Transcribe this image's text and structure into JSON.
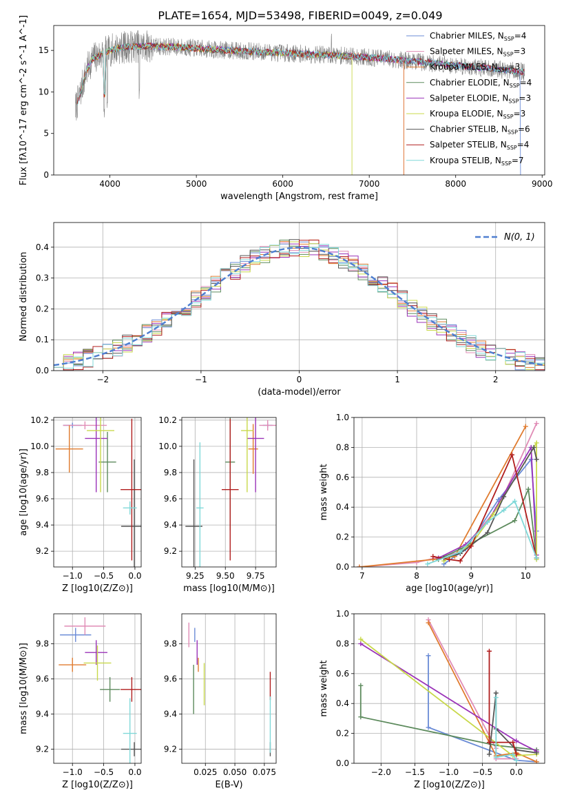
{
  "figure_title": "PLATE=1654, MJD=53498, FIBERID=0049, z=0.049",
  "models": [
    {
      "label": "Chabrier MILES, N",
      "n": "4",
      "color": "#6a8bd6"
    },
    {
      "label": "Salpeter MILES, N",
      "n": "3",
      "color": "#e08bb5"
    },
    {
      "label": "Kroupa MILES, N",
      "n": "3",
      "color": "#e07b2e"
    },
    {
      "label": "Chabrier ELODIE, N",
      "n": "4",
      "color": "#5c8a5c"
    },
    {
      "label": "Salpeter ELODIE, N",
      "n": "3",
      "color": "#9a32b8"
    },
    {
      "label": "Kroupa ELODIE, N",
      "n": "3",
      "color": "#c8d84a"
    },
    {
      "label": "Chabrier STELIB, N",
      "n": "6",
      "color": "#555555"
    },
    {
      "label": "Salpeter STELIB, N",
      "n": "4",
      "color": "#b01c1c"
    },
    {
      "label": "Kroupa STELIB, N",
      "n": "7",
      "color": "#7fd8d8"
    }
  ],
  "legend_sub": "SSP",
  "normal_label": "N(0, 1)",
  "chart_data": [
    {
      "id": "spectrum",
      "type": "line",
      "title": "PLATE=1654, MJD=53498, FIBERID=0049, z=0.049",
      "xlabel": "wavelength [Angstrom, rest frame]",
      "ylabel": "Flux [fλ10^-17 erg cm^-2 s^-1 A^-1]",
      "xlim": [
        3350,
        9030
      ],
      "ylim": [
        0,
        18
      ],
      "xticks": [
        "4000",
        "5000",
        "6000",
        "7000",
        "8000",
        "9000"
      ],
      "yticks": [
        "0",
        "5",
        "10",
        "15"
      ],
      "data_wavelength": [
        3600,
        3650,
        3700,
        3750,
        3800,
        3900,
        4000,
        4100,
        4300,
        4500,
        4800,
        5200,
        5600,
        6000,
        6400,
        6800,
        7200,
        7600,
        8000,
        8400,
        8800
      ],
      "data_flux": [
        8.0,
        9.5,
        11.5,
        13.0,
        14.0,
        14.5,
        15.0,
        15.3,
        15.5,
        15.5,
        15.4,
        15.1,
        14.9,
        14.7,
        14.5,
        14.3,
        14.0,
        13.6,
        13.2,
        12.8,
        12.4
      ],
      "model_cutoff": {
        "Chabrier MILES": 8750,
        "Salpeter MILES": 7400,
        "Kroupa MILES": 7400,
        "Kroupa ELODIE": 6800
      }
    },
    {
      "id": "residuals",
      "type": "histogram",
      "xlabel": "(data-model)/error",
      "ylabel": "Normed distribution",
      "xlim": [
        -2.5,
        2.5
      ],
      "ylim": [
        0,
        0.48
      ],
      "xticks": [
        "-2",
        "-1",
        "0",
        "1",
        "2"
      ],
      "yticks": [
        "0.0",
        "0.1",
        "0.2",
        "0.3",
        "0.4"
      ],
      "bin_width": 0.1,
      "reference": "normal(0,1)"
    },
    {
      "id": "age_vs_Z",
      "type": "errorbar",
      "xlabel": "Z [log10(Z/Z⊙)]",
      "ylabel": "age [log10(age/yr)]",
      "xlim": [
        -1.3,
        0.1
      ],
      "ylim": [
        9.08,
        10.22
      ],
      "xticks": [
        "-1.0",
        "-0.5",
        "0.0"
      ],
      "yticks": [
        "9.2",
        "9.4",
        "9.6",
        "9.8",
        "10.0",
        "10.2"
      ],
      "points": [
        {
          "x": -1.0,
          "xerr": 0.15,
          "y": 10.16,
          "yerr": 0.02
        },
        {
          "x": -0.8,
          "xerr": 0.35,
          "y": 10.16,
          "yerr": 0.03
        },
        {
          "x": -1.05,
          "xerr": 0.22,
          "y": 9.98,
          "yerr": 0.18
        },
        {
          "x": -0.44,
          "xerr": 0.14,
          "y": 9.88,
          "yerr": 0.23
        },
        {
          "x": -0.62,
          "xerr": 0.18,
          "y": 10.06,
          "yerr": 0.41
        },
        {
          "x": -0.55,
          "xerr": 0.22,
          "y": 10.12,
          "yerr": 0.47
        },
        {
          "x": -0.01,
          "xerr": 0.21,
          "y": 9.39,
          "yerr": 0.51
        },
        {
          "x": -0.05,
          "xerr": 0.18,
          "y": 9.67,
          "yerr": 0.54
        },
        {
          "x": -0.08,
          "xerr": 0.11,
          "y": 9.53,
          "yerr": 0.05
        }
      ]
    },
    {
      "id": "age_vs_mass",
      "type": "errorbar",
      "xlabel": "mass [log10(M/M⊙)]",
      "ylabel": "",
      "xlim": [
        9.14,
        9.92
      ],
      "ylim": [
        9.08,
        10.22
      ],
      "xticks": [
        "9.25",
        "9.50",
        "9.75"
      ],
      "yticks": [
        "9.2",
        "9.4",
        "9.6",
        "9.8",
        "10.0",
        "10.2"
      ],
      "points": [
        {
          "x": 9.85,
          "xerr": 0.04,
          "y": 10.16,
          "yerr": 0.02
        },
        {
          "x": 9.85,
          "xerr": 0.07,
          "y": 10.16,
          "yerr": 0.04
        },
        {
          "x": 9.73,
          "xerr": 0.04,
          "y": 9.98,
          "yerr": 0.19
        },
        {
          "x": 9.54,
          "xerr": 0.04,
          "y": 9.88,
          "yerr": 0.52
        },
        {
          "x": 9.75,
          "xerr": 0.07,
          "y": 10.06,
          "yerr": 0.41
        },
        {
          "x": 9.68,
          "xerr": 0.05,
          "y": 10.12,
          "yerr": 0.47
        },
        {
          "x": 9.24,
          "xerr": 0.07,
          "y": 9.39,
          "yerr": 0.51
        },
        {
          "x": 9.54,
          "xerr": 0.07,
          "y": 9.67,
          "yerr": 0.54
        },
        {
          "x": 9.29,
          "xerr": 0.03,
          "y": 9.53,
          "yerr": 0.5
        }
      ]
    },
    {
      "id": "massweight_vs_age",
      "type": "line",
      "xlabel": "age [log10(age/yr)]",
      "ylabel": "mass weight",
      "xlim": [
        6.85,
        10.35
      ],
      "ylim": [
        0,
        1.0
      ],
      "xticks": [
        "7",
        "8",
        "9",
        "10"
      ],
      "yticks": [
        "0.0",
        "0.2",
        "0.4",
        "0.6",
        "0.8",
        "1.0"
      ],
      "series": [
        {
          "x": [
            8.5,
            8.9,
            9.5,
            10.1,
            10.2
          ],
          "y": [
            0.02,
            0.12,
            0.45,
            0.72,
            0.24
          ]
        },
        {
          "x": [
            6.95,
            8.0,
            8.8,
            9.5,
            10.2
          ],
          "y": [
            0.0,
            0.03,
            0.1,
            0.4,
            0.96
          ]
        },
        {
          "x": [
            6.95,
            8.3,
            8.7,
            10.0
          ],
          "y": [
            0.0,
            0.05,
            0.07,
            0.94
          ]
        },
        {
          "x": [
            8.4,
            8.8,
            9.8,
            10.05,
            10.2
          ],
          "y": [
            0.05,
            0.12,
            0.31,
            0.52,
            0.06
          ]
        },
        {
          "x": [
            8.4,
            8.9,
            9.3,
            10.1,
            10.2
          ],
          "y": [
            0.06,
            0.15,
            0.3,
            0.8,
            0.08
          ]
        },
        {
          "x": [
            8.5,
            9.0,
            9.4,
            10.2,
            10.2
          ],
          "y": [
            0.04,
            0.15,
            0.35,
            0.83,
            0.05
          ]
        },
        {
          "x": [
            8.5,
            8.8,
            9.3,
            9.6,
            10.15,
            10.2
          ],
          "y": [
            0.06,
            0.09,
            0.23,
            0.47,
            0.8,
            0.72
          ]
        },
        {
          "x": [
            8.3,
            8.6,
            8.8,
            9.0,
            9.75,
            10.2
          ],
          "y": [
            0.07,
            0.05,
            0.04,
            0.14,
            0.75,
            0.06
          ]
        },
        {
          "x": [
            8.2,
            8.8,
            9.3,
            9.6,
            9.8,
            10.2
          ],
          "y": [
            0.02,
            0.1,
            0.3,
            0.38,
            0.44,
            0.06
          ]
        }
      ]
    },
    {
      "id": "mass_vs_Z",
      "type": "errorbar",
      "xlabel": "Z [log10(Z/Z⊙)]",
      "ylabel": "mass [log10(M/M⊙)]",
      "xlim": [
        -1.3,
        0.1
      ],
      "ylim": [
        9.12,
        9.97
      ],
      "xticks": [
        "-1.0",
        "-0.5",
        "0.0"
      ],
      "yticks": [
        "9.2",
        "9.4",
        "9.6",
        "9.8"
      ],
      "points": [
        {
          "x": -0.95,
          "xerr": 0.25,
          "y": 9.85,
          "yerr": 0.04
        },
        {
          "x": -0.8,
          "xerr": 0.33,
          "y": 9.9,
          "yerr": 0.05
        },
        {
          "x": -1.0,
          "xerr": 0.22,
          "y": 9.68,
          "yerr": 0.04
        },
        {
          "x": -0.4,
          "xerr": 0.16,
          "y": 9.54,
          "yerr": 0.07
        },
        {
          "x": -0.62,
          "xerr": 0.18,
          "y": 9.75,
          "yerr": 0.07
        },
        {
          "x": -0.6,
          "xerr": 0.22,
          "y": 9.69,
          "yerr": 0.1
        },
        {
          "x": -0.01,
          "xerr": 0.21,
          "y": 9.2,
          "yerr": 0.04
        },
        {
          "x": -0.05,
          "xerr": 0.18,
          "y": 9.54,
          "yerr": 0.07
        },
        {
          "x": -0.08,
          "xerr": 0.11,
          "y": 9.29,
          "yerr": 0.2
        }
      ]
    },
    {
      "id": "mass_vs_ebv",
      "type": "errorbar",
      "xlabel": "E(B-V)",
      "ylabel": "",
      "xlim": [
        0.005,
        0.085
      ],
      "ylim": [
        9.12,
        9.97
      ],
      "xticks": [
        "0.025",
        "0.050",
        "0.075"
      ],
      "yticks": [
        "9.2",
        "9.4",
        "9.6",
        "9.8"
      ],
      "points": [
        {
          "x": 0.016,
          "xerr": 0.0,
          "y": 9.85,
          "yerr": 0.04
        },
        {
          "x": 0.011,
          "xerr": 0.0,
          "y": 9.85,
          "yerr": 0.07
        },
        {
          "x": 0.019,
          "xerr": 0.0,
          "y": 9.68,
          "yerr": 0.04
        },
        {
          "x": 0.015,
          "xerr": 0.0,
          "y": 9.54,
          "yerr": 0.14
        },
        {
          "x": 0.018,
          "xerr": 0.0,
          "y": 9.75,
          "yerr": 0.07
        },
        {
          "x": 0.024,
          "xerr": 0.0,
          "y": 9.57,
          "yerr": 0.12
        },
        {
          "x": 0.08,
          "xerr": 0.0,
          "y": 9.2,
          "yerr": 0.04
        },
        {
          "x": 0.08,
          "xerr": 0.0,
          "y": 9.56,
          "yerr": 0.08
        },
        {
          "x": 0.08,
          "xerr": 0.0,
          "y": 9.34,
          "yerr": 0.16
        }
      ]
    },
    {
      "id": "massweight_vs_Z",
      "type": "line",
      "xlabel": "Z [log10(Z/Z⊙)]",
      "ylabel": "mass weight",
      "xlim": [
        -2.4,
        0.42
      ],
      "ylim": [
        0,
        1.0
      ],
      "xticks": [
        "-2.0",
        "-1.5",
        "-1.0",
        "-0.5",
        "0.0"
      ],
      "yticks": [
        "0.0",
        "0.2",
        "0.4",
        "0.6",
        "0.8",
        "1.0"
      ],
      "series": [
        {
          "x": [
            -1.3,
            -1.3,
            0.0,
            0.3
          ],
          "y": [
            0.72,
            0.24,
            0.02,
            0.01
          ]
        },
        {
          "x": [
            -1.3,
            -0.3,
            -0.3,
            0.0
          ],
          "y": [
            0.96,
            0.1,
            0.03,
            0.03
          ]
        },
        {
          "x": [
            -1.3,
            -0.3,
            0.0,
            0.3
          ],
          "y": [
            0.94,
            0.05,
            0.07,
            0.01
          ]
        },
        {
          "x": [
            -2.3,
            -2.3,
            -0.3,
            0.3
          ],
          "y": [
            0.52,
            0.31,
            0.12,
            0.09
          ]
        },
        {
          "x": [
            -2.3,
            0.0,
            0.3
          ],
          "y": [
            0.8,
            0.15,
            0.08
          ]
        },
        {
          "x": [
            -2.3,
            -0.05,
            0.3
          ],
          "y": [
            0.83,
            0.05,
            0.06
          ]
        },
        {
          "x": [
            -0.4,
            -0.3,
            -0.3,
            0.0,
            0.3
          ],
          "y": [
            0.06,
            0.47,
            0.23,
            0.09,
            0.07
          ]
        },
        {
          "x": [
            -0.4,
            -0.4,
            -0.05,
            0.0
          ],
          "y": [
            0.75,
            0.14,
            0.14,
            0.06
          ]
        },
        {
          "x": [
            -0.3,
            -0.3,
            -0.05,
            0.0
          ],
          "y": [
            0.44,
            0.04,
            0.06,
            0.02
          ]
        }
      ]
    }
  ]
}
